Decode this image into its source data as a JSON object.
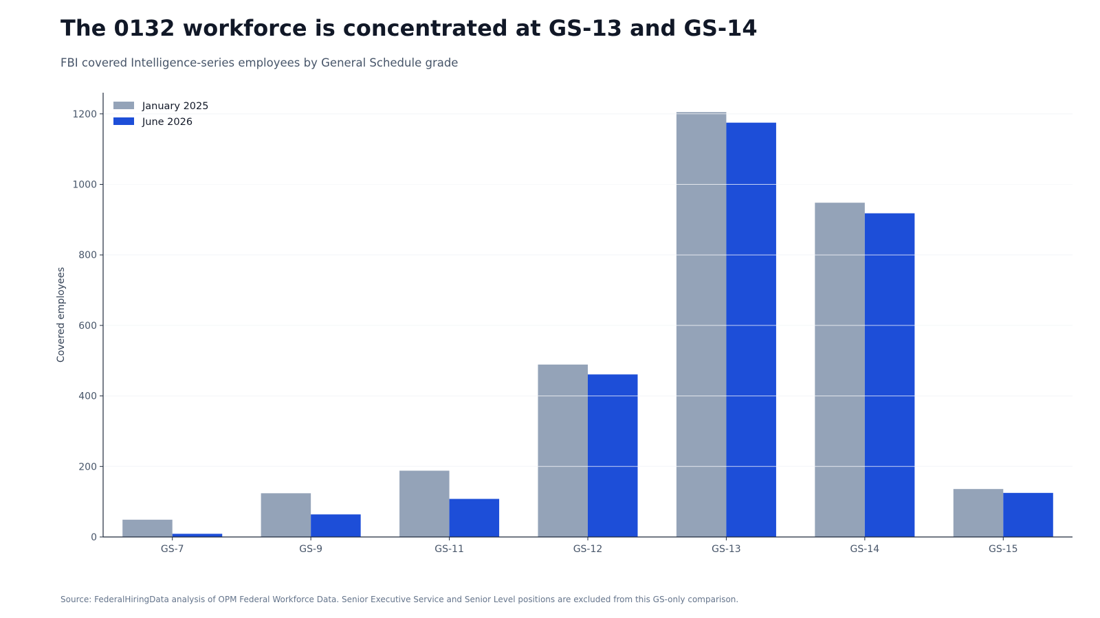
{
  "colors": {
    "january_2025": "#94a3b8",
    "june_2026": "#1d4ed8",
    "grid": "#e2e8f0",
    "axis": "#1e293b",
    "tick_text": "#475569"
  },
  "chart_data": {
    "type": "bar",
    "title": "The 0132 workforce is concentrated at GS-13 and GS-14",
    "subtitle": "FBI covered Intelligence-series employees by General Schedule grade",
    "xlabel": "",
    "ylabel": "Covered employees",
    "categories": [
      "GS-7",
      "GS-9",
      "GS-11",
      "GS-12",
      "GS-13",
      "GS-14",
      "GS-15"
    ],
    "series": [
      {
        "name": "January 2025",
        "values": [
          49,
          124,
          188,
          489,
          1205,
          948,
          136
        ]
      },
      {
        "name": "June 2026",
        "values": [
          9,
          64,
          108,
          461,
          1175,
          918,
          125
        ]
      }
    ],
    "ylim": [
      0,
      1260
    ],
    "yticks": [
      0,
      200,
      400,
      600,
      800,
      1000,
      1200
    ],
    "grid": true,
    "legend_position": "top-left",
    "source": "Source: FederalHiringData analysis of OPM Federal Workforce Data. Senior Executive Service and Senior Level positions are excluded from this GS-only comparison."
  }
}
